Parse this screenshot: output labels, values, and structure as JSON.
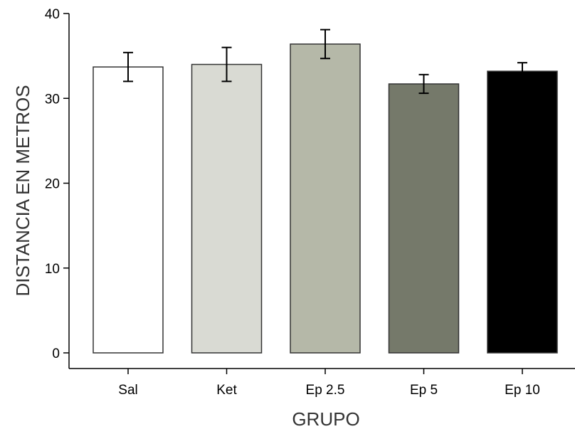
{
  "chart_data": {
    "type": "bar",
    "title": "",
    "xlabel": "GRUPO",
    "ylabel": "DISTANCIA EN METROS",
    "categories": [
      "Sal",
      "Ket",
      "Ep 2.5",
      "Ep 5",
      "Ep 10"
    ],
    "values": [
      33.7,
      34.0,
      36.4,
      31.7,
      33.2
    ],
    "error": [
      1.7,
      2.0,
      1.7,
      1.1,
      1.0
    ],
    "colors": [
      "#ffffff",
      "#d9dad3",
      "#b5b8a8",
      "#75796a",
      "#000000"
    ],
    "bar_edge_color": "#333333",
    "ylim": [
      0,
      40
    ],
    "yticks": [
      "0",
      "10",
      "20",
      "30",
      "40"
    ],
    "grid": false,
    "legend": "none"
  }
}
